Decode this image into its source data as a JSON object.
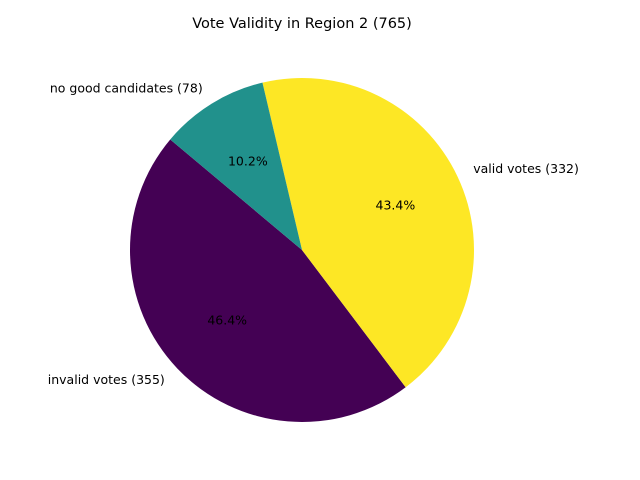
{
  "chart_data": {
    "type": "pie",
    "title": "Vote Validity in Region 2 (765)",
    "slices": [
      {
        "label": "invalid votes (355)",
        "value": 355,
        "pct_label": "46.4%",
        "color": "#440154"
      },
      {
        "label": "valid votes (332)",
        "value": 332,
        "pct_label": "43.4%",
        "color": "#fde725"
      },
      {
        "label": "no good candidates (78)",
        "value": 78,
        "pct_label": "10.2%",
        "color": "#21918c"
      }
    ],
    "start_angle_deg": 140,
    "direction": "counterclockwise"
  }
}
